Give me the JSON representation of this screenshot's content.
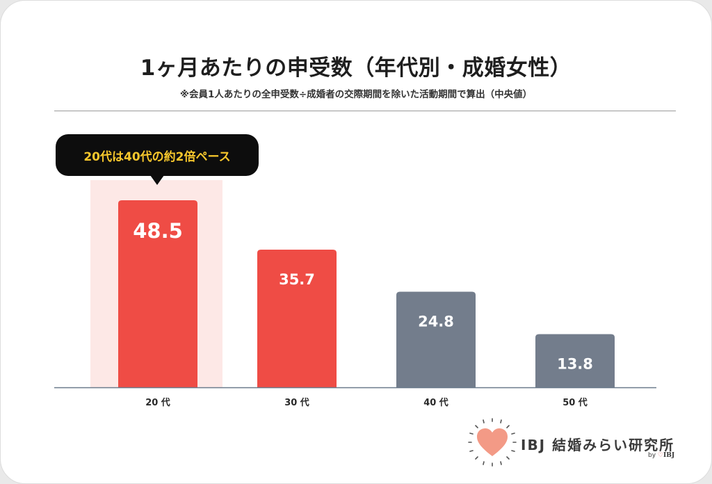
{
  "title": "1ヶ月あたりの申受数（年代別・成婚女性）",
  "subtitle": "※会員1人あたりの全申受数÷成婚者の交際期間を除いた活動期間で算出（中央値）",
  "callout": "20代は40代の約2倍ペース",
  "chart_data": {
    "type": "bar",
    "title": "1ヶ月あたりの申受数（年代別・成婚女性）",
    "categories": [
      "20 代",
      "30 代",
      "40 代",
      "50 代"
    ],
    "values": [
      48.5,
      35.7,
      24.8,
      13.8
    ],
    "value_labels": [
      "48.5",
      "35.7",
      "24.8",
      "13.8"
    ],
    "xlabel": "",
    "ylabel": "",
    "ylim": [
      0,
      50
    ],
    "grid": false,
    "highlight_category": "20 代",
    "colors": {
      "red": "#ef4c45",
      "gray": "#737d8c",
      "highlight_bg": "#fde8e6",
      "axis": "#6b7b8c"
    },
    "bar_colors": [
      "#ef4c45",
      "#ef4c45",
      "#737d8c",
      "#737d8c"
    ]
  },
  "logo": {
    "text": "IBJ 結婚みらい研究所",
    "by_prefix": "by",
    "by_brand": "IBJ",
    "icon": "heart-icon"
  }
}
